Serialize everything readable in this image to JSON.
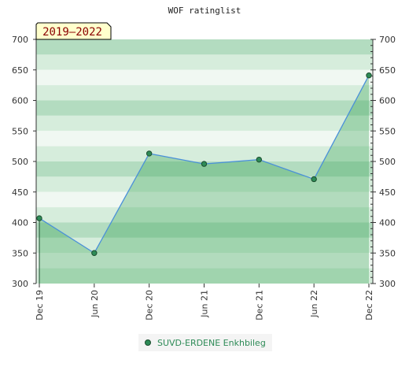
{
  "chart_data": {
    "type": "line",
    "title": "WOF ratinglist",
    "period_label": "2019–2022",
    "categories": [
      "Dec 19",
      "Jun 20",
      "Dec 20",
      "Jun 21",
      "Dec 21",
      "Jun 22",
      "Dec 22"
    ],
    "series": [
      {
        "name": "SUVD-ERDENE Enkhbileg",
        "values": [
          407,
          350,
          513,
          496,
          503,
          471,
          641
        ]
      }
    ],
    "ylim": [
      300,
      700
    ],
    "yticks": [
      300,
      350,
      400,
      450,
      500,
      550,
      600,
      650,
      700
    ],
    "xlabel": "",
    "ylabel": "",
    "grid": "horizontal bands",
    "legend_position": "bottom",
    "colors": {
      "band_dark": "#b3dcc0",
      "band_mid": "#d6eddc",
      "band_light": "#f0f8f2",
      "area_fill": "#2e9e4f",
      "line": "#4a90d9",
      "marker": "#2e8b57",
      "badge_bg": "#ffffcc"
    }
  }
}
